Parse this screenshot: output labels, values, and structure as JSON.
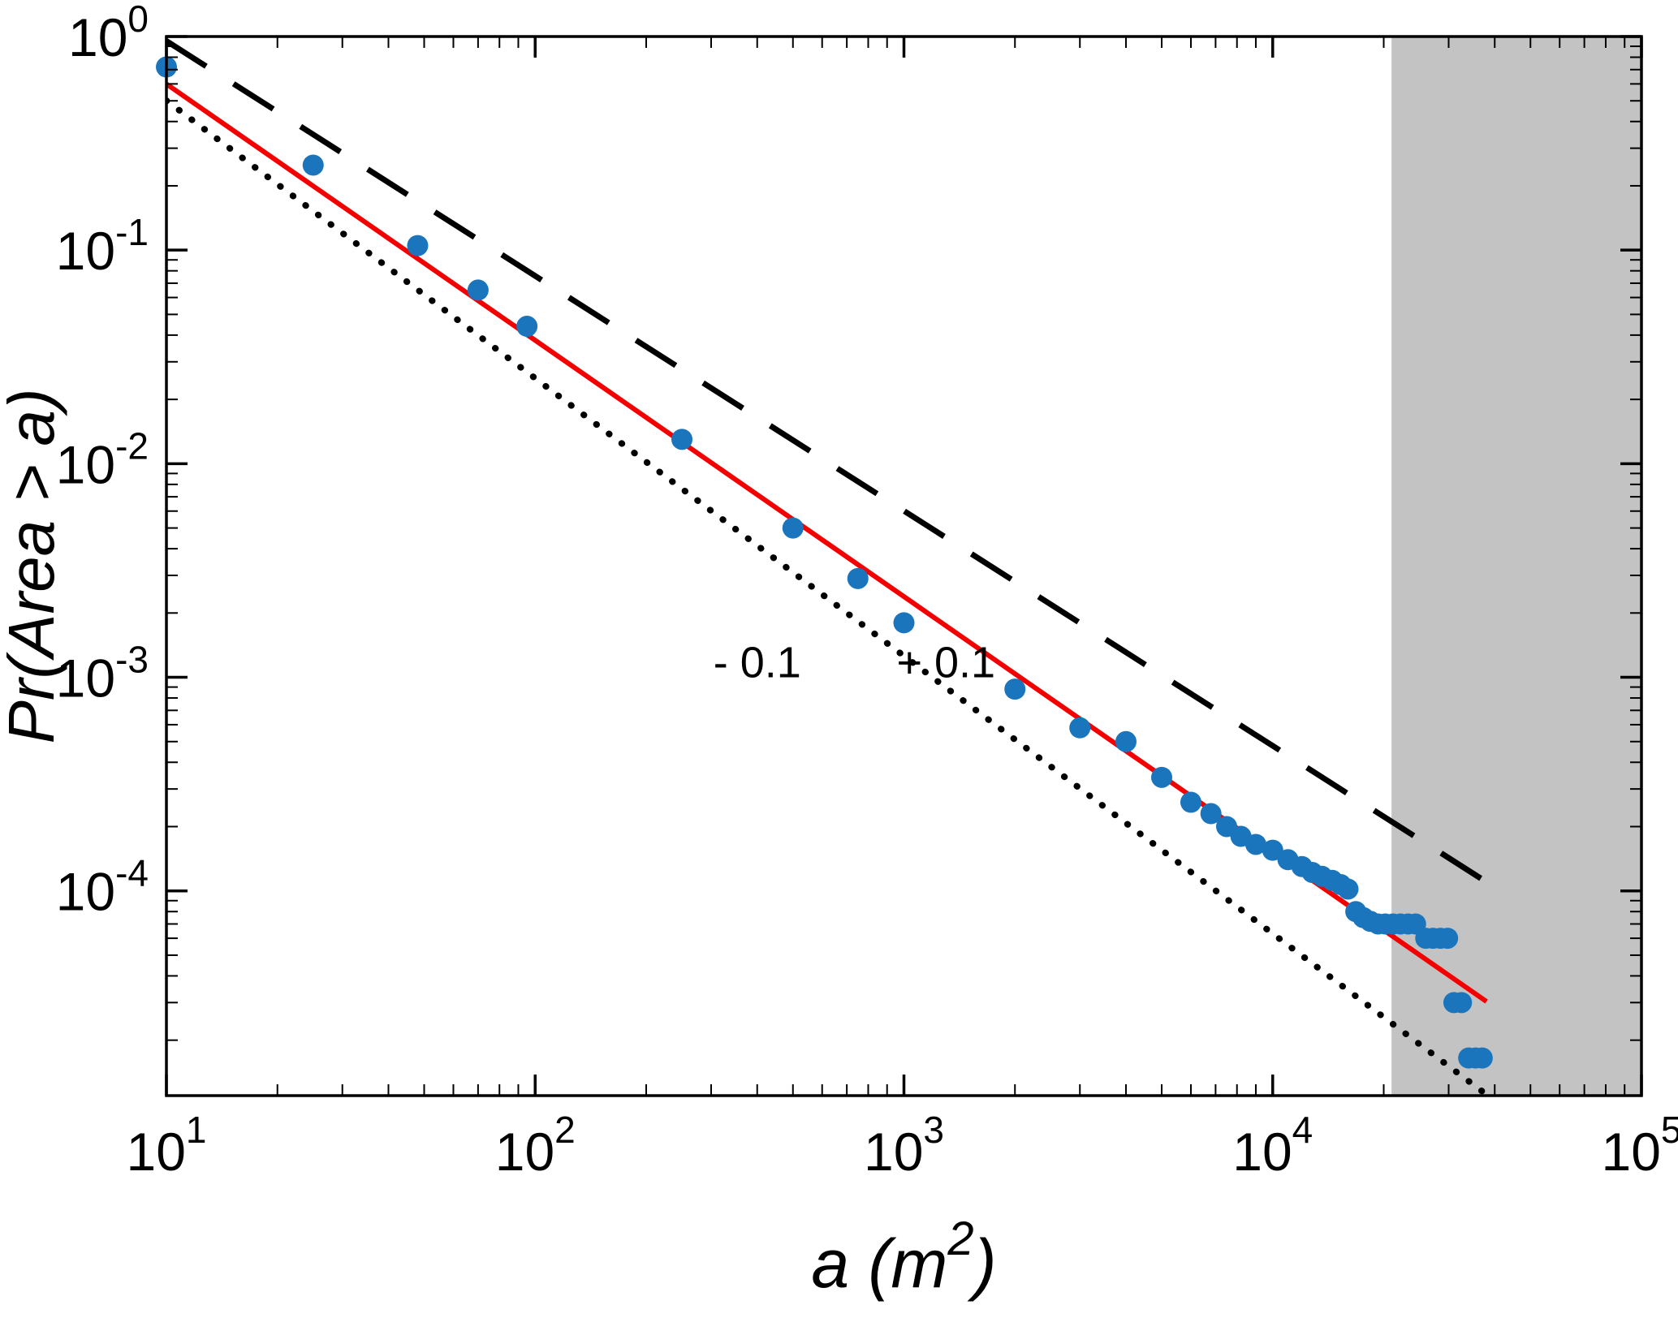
{
  "chart_data": {
    "type": "scatter",
    "title": "",
    "xlabel": "a (m²)",
    "xlabel_parts": {
      "pre": "a (m",
      "sup": "2",
      "post": ")"
    },
    "ylabel": "Pr(Area > a)",
    "xscale": "log",
    "yscale": "log",
    "log_base": "10",
    "xlim": [
      10,
      100000
    ],
    "ylim": [
      1.1e-05,
      1
    ],
    "x_tick_exponents": [
      1,
      2,
      3,
      4,
      5
    ],
    "y_tick_exponents": [
      0,
      -1,
      -2,
      -3,
      -4
    ],
    "grid": false,
    "legend": false,
    "background": "#ffffff",
    "shaded_region": {
      "x_start": 21000,
      "x_end": 100000,
      "color": "#c3c3c3"
    },
    "series": [
      {
        "name": "empirical-ccdf",
        "marker": "circle",
        "color": "#1b75bc",
        "marker_size": 13,
        "x": [
          10,
          25,
          48,
          70,
          95,
          250,
          500,
          750,
          1000,
          2000,
          3000,
          4000,
          5000,
          6000,
          6800,
          7500,
          8200,
          9000,
          10000,
          11000,
          12000,
          12800,
          13600,
          14500,
          15300,
          16000,
          16800,
          17600,
          18400,
          19300,
          20200,
          21200,
          22200,
          23300,
          24400,
          26000,
          27200,
          28500,
          29800,
          31000,
          32500,
          34000,
          35500,
          37000
        ],
        "y": [
          0.72,
          0.25,
          0.105,
          0.065,
          0.044,
          0.013,
          0.005,
          0.0029,
          0.0018,
          0.00088,
          0.00058,
          0.0005,
          0.00034,
          0.00026,
          0.00023,
          0.0002,
          0.00018,
          0.000165,
          0.000155,
          0.00014,
          0.00013,
          0.000122,
          0.000117,
          0.000112,
          0.000107,
          0.000102,
          8e-05,
          7.5e-05,
          7.2e-05,
          7e-05,
          7e-05,
          7e-05,
          7e-05,
          7e-05,
          7e-05,
          6e-05,
          6e-05,
          6e-05,
          6e-05,
          3e-05,
          3e-05,
          1.65e-05,
          1.65e-05,
          1.65e-05
        ]
      }
    ],
    "lines": [
      {
        "name": "power-law-fit",
        "dash": "solid",
        "color": "#f40000",
        "width": 6,
        "coefficient": 9.5,
        "exponent": -1.2,
        "x_start": 10,
        "x_end": 38000
      },
      {
        "name": "exponent-plus-tenth",
        "dash": "dashed",
        "color": "#000000",
        "width": 7,
        "coefficient": 12,
        "exponent": -1.1,
        "x_start": 10,
        "x_end": 38000
      },
      {
        "name": "exponent-minus-tenth",
        "dash": "dotted",
        "color": "#000000",
        "width": 8,
        "coefficient": 10,
        "exponent": -1.3,
        "x_start": 10,
        "x_end": 42000
      }
    ],
    "annotations": [
      {
        "text": "- 0.1",
        "x": 400,
        "y": 0.001,
        "font_size": 54
      },
      {
        "text": "+ 0.1",
        "x": 1300,
        "y": 0.001,
        "font_size": 54
      }
    ]
  }
}
